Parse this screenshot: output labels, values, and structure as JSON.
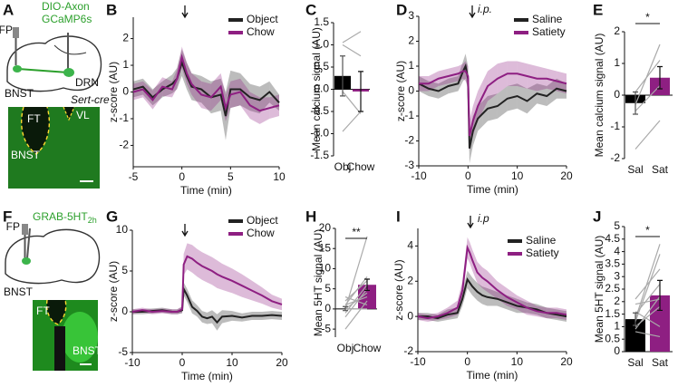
{
  "diagrams": [
    {
      "panel": "A",
      "labels": [
        "FP",
        "DIO-Axon",
        "GCaMP6s",
        "DRN",
        "BNST",
        "Sert-cre"
      ],
      "image_labels": [
        "FT",
        "VL",
        "BNST"
      ]
    },
    {
      "panel": "F",
      "label_main": "GRAB-5HT",
      "label_sub": "2h",
      "labels": [
        "FP",
        "BNST"
      ],
      "image_labels": [
        "FT",
        "BNST"
      ]
    }
  ],
  "chart_data": [
    {
      "type": "line",
      "panel": "B",
      "xlabel": "Time (min)",
      "ylabel": "z-score (AU)",
      "x": [
        -5,
        -4,
        -3,
        -2,
        -1,
        -0.5,
        0,
        0.5,
        1,
        2,
        3,
        4,
        4.5,
        5,
        6,
        7,
        8,
        9,
        10
      ],
      "series": [
        {
          "name": "Object",
          "color": "#222222",
          "values": [
            0.1,
            0.2,
            -0.2,
            0.1,
            0.3,
            0.5,
            1.1,
            0.6,
            0.2,
            0.1,
            -0.2,
            -0.1,
            -0.9,
            0.1,
            0.1,
            -0.2,
            -0.3,
            0,
            -0.4
          ],
          "errors": [
            0.3,
            0.3,
            0.3,
            0.3,
            0.35,
            0.4,
            0.5,
            0.5,
            0.5,
            0.5,
            0.6,
            0.6,
            0.9,
            0.7,
            0.6,
            0.5,
            0.5,
            0.4,
            0.3
          ]
        },
        {
          "name": "Chow",
          "color": "#8e1f82",
          "values": [
            0,
            0.1,
            -0.3,
            0.2,
            0.1,
            0.5,
            1.3,
            0.7,
            0.3,
            -0.1,
            -0.2,
            0.2,
            -0.6,
            -0.1,
            0,
            -0.5,
            -0.7,
            -0.6,
            -0.5
          ],
          "errors": [
            0.3,
            0.3,
            0.35,
            0.35,
            0.3,
            0.35,
            0.4,
            0.4,
            0.4,
            0.5,
            0.5,
            0.5,
            0.5,
            0.5,
            0.5,
            0.5,
            0.5,
            0.4,
            0.4
          ]
        }
      ],
      "xlim": [
        -5,
        10
      ],
      "xticks": [
        -5,
        0,
        5,
        10
      ],
      "ylim": [
        -2.8,
        2.8
      ],
      "yticks": [
        -2,
        -1,
        0,
        1,
        2
      ]
    },
    {
      "type": "bar",
      "panel": "C",
      "ylabel": "Mean calcium signal (AU)",
      "categories": [
        "Obj",
        "Chow"
      ],
      "colors": [
        "#000000",
        "#8e1f82"
      ],
      "values": [
        0.3,
        -0.05
      ],
      "errors": [
        0.45,
        0.45
      ],
      "pairs": [
        [
          1.05,
          1.3
        ],
        [
          1.0,
          0.75
        ],
        [
          -0.05,
          -0.55
        ],
        [
          -0.95,
          -0.5
        ]
      ],
      "ylim": [
        -1.5,
        1.5
      ],
      "yticks": [
        -1.5,
        {
          "value": -1,
          "label": "-1.0"
        },
        -0.5,
        {
          "value": 0,
          "label": "0.0"
        },
        0.5,
        {
          "value": 1,
          "label": "1.0"
        },
        1.5
      ]
    },
    {
      "type": "line",
      "panel": "D",
      "xlabel": "Time (min)",
      "ylabel": "z-score (AU)",
      "annotation": "i.p.",
      "x": [
        -10,
        -8,
        -6,
        -4,
        -2,
        -1,
        -0.5,
        0,
        0.3,
        1,
        2,
        3,
        4,
        6,
        8,
        10,
        12,
        14,
        16,
        18,
        20
      ],
      "series": [
        {
          "name": "Saline",
          "color": "#222222",
          "values": [
            0.3,
            0.1,
            0,
            0.2,
            0.3,
            0.8,
            1.0,
            0.5,
            -2.3,
            -1.6,
            -1.1,
            -0.9,
            -0.7,
            -0.6,
            -0.3,
            -0.2,
            -0.4,
            -0.1,
            -0.2,
            0.1,
            0
          ],
          "errors": [
            0.3,
            0.3,
            0.3,
            0.3,
            0.3,
            0.4,
            0.5,
            0.5,
            0.6,
            0.6,
            0.5,
            0.5,
            0.5,
            0.5,
            0.5,
            0.5,
            0.5,
            0.4,
            0.4,
            0.4,
            0.3
          ]
        },
        {
          "name": "Satiety",
          "color": "#8e1f82",
          "values": [
            0.3,
            0.3,
            0.5,
            0.6,
            0.7,
            0.8,
            0.8,
            0.6,
            -1.8,
            -1.2,
            -0.6,
            -0.2,
            0.2,
            0.5,
            0.7,
            0.7,
            0.6,
            0.5,
            0.5,
            0.4,
            0.3
          ],
          "errors": [
            0.3,
            0.3,
            0.3,
            0.3,
            0.3,
            0.3,
            0.4,
            0.4,
            0.6,
            0.6,
            0.6,
            0.6,
            0.6,
            0.6,
            0.5,
            0.5,
            0.5,
            0.5,
            0.4,
            0.4,
            0.4
          ]
        }
      ],
      "xlim": [
        -10,
        20
      ],
      "xticks": [
        -10,
        0,
        10,
        20
      ],
      "ylim": [
        -3,
        3
      ],
      "yticks": [
        -3,
        -2,
        -1,
        0,
        1,
        2,
        3
      ]
    },
    {
      "type": "bar",
      "panel": "E",
      "ylabel": "Mean calcium signal (AU)",
      "categories": [
        "Sal",
        "Sat"
      ],
      "colors": [
        "#000000",
        "#8e1f82"
      ],
      "values": [
        -0.25,
        0.55
      ],
      "errors": [
        0.35,
        0.35
      ],
      "pairs": [
        [
          -0.3,
          1.6
        ],
        [
          0.1,
          1.1
        ],
        [
          -0.5,
          0.3
        ],
        [
          -1.7,
          -0.8
        ]
      ],
      "significance": "*",
      "ylim": [
        -2,
        2
      ],
      "yticks": [
        -2,
        -1,
        0,
        1,
        2
      ]
    },
    {
      "type": "line",
      "panel": "G",
      "xlabel": "Time (min)",
      "ylabel": "z-score (AU)",
      "x": [
        -10,
        -8,
        -6,
        -4,
        -2,
        -1,
        0,
        0.3,
        1,
        2,
        3,
        4,
        5,
        6,
        7,
        8,
        10,
        12,
        14,
        16,
        18,
        20
      ],
      "series": [
        {
          "name": "Object",
          "color": "#222222",
          "values": [
            0,
            0,
            0.1,
            0.2,
            0,
            0,
            0.2,
            2.8,
            2.0,
            0.6,
            0.1,
            -0.6,
            -0.8,
            -0.6,
            -1.3,
            -0.6,
            -0.5,
            -0.7,
            -0.5,
            -0.5,
            -0.4,
            -0.5
          ],
          "errors": [
            0.3,
            0.3,
            0.3,
            0.3,
            0.3,
            0.3,
            0.4,
            0.8,
            0.8,
            0.8,
            0.7,
            0.7,
            0.7,
            0.8,
            1.0,
            0.8,
            0.6,
            0.5,
            0.5,
            0.5,
            0.5,
            0.5
          ]
        },
        {
          "name": "Chow",
          "color": "#8e1f82",
          "values": [
            0,
            0.2,
            0,
            0.1,
            0,
            0,
            0.3,
            5.8,
            6.8,
            6.5,
            6.0,
            5.6,
            5.3,
            5.0,
            4.6,
            4.3,
            3.8,
            3.2,
            2.6,
            2.0,
            1.3,
            0.9
          ],
          "errors": [
            0.3,
            0.3,
            0.3,
            0.3,
            0.3,
            0.3,
            0.4,
            1.3,
            1.6,
            1.7,
            1.7,
            1.7,
            1.7,
            1.7,
            1.7,
            1.6,
            1.5,
            1.4,
            1.2,
            1.0,
            0.8,
            0.7
          ]
        }
      ],
      "xlim": [
        -10,
        20
      ],
      "xticks": [
        -10,
        0,
        10,
        20
      ],
      "ylim": [
        -5,
        10
      ],
      "yticks": [
        -5,
        0,
        5,
        10
      ]
    },
    {
      "type": "bar",
      "panel": "H",
      "ylabel": "Mean 5HT signal (AU)",
      "categories": [
        "Obj",
        "Chow"
      ],
      "colors": [
        "#000000",
        "#8e1f82"
      ],
      "values": [
        0.1,
        6.0
      ],
      "errors": [
        0.5,
        1.4
      ],
      "pairs": [
        [
          0,
          18
        ],
        [
          1,
          8
        ],
        [
          2,
          7
        ],
        [
          -1,
          6
        ],
        [
          0,
          4
        ],
        [
          -2,
          5
        ],
        [
          1,
          3
        ],
        [
          -5,
          2
        ],
        [
          3,
          1
        ],
        [
          0,
          0
        ]
      ],
      "significance": "**",
      "ylim": [
        -7,
        20
      ],
      "yticks": [
        -5,
        0,
        5,
        10,
        15,
        20
      ]
    },
    {
      "type": "line",
      "panel": "I",
      "xlabel": "Time (min)",
      "ylabel": "z-score (AU)",
      "annotation": "i.p",
      "x": [
        -10,
        -8,
        -6,
        -4,
        -2,
        -1,
        0,
        0.5,
        1,
        2,
        3,
        4,
        6,
        8,
        10,
        12,
        14,
        16,
        18,
        20
      ],
      "series": [
        {
          "name": "Saline",
          "color": "#222222",
          "values": [
            0,
            0,
            -0.1,
            0.1,
            0.2,
            1.0,
            2.1,
            1.9,
            1.7,
            1.4,
            1.2,
            1.1,
            1.0,
            0.8,
            0.6,
            0.5,
            0.4,
            0.2,
            0.1,
            0
          ],
          "errors": [
            0.2,
            0.2,
            0.2,
            0.3,
            0.3,
            0.4,
            0.5,
            0.5,
            0.5,
            0.5,
            0.5,
            0.5,
            0.4,
            0.4,
            0.4,
            0.3,
            0.3,
            0.3,
            0.3,
            0.3
          ]
        },
        {
          "name": "Satiety",
          "color": "#8e1f82",
          "values": [
            0,
            -0.1,
            0,
            0.2,
            0.5,
            1.5,
            3.9,
            3.6,
            3.2,
            2.5,
            2.2,
            2.0,
            1.5,
            1.1,
            0.8,
            0.5,
            0.3,
            0.2,
            0.2,
            0.1
          ],
          "errors": [
            0.2,
            0.2,
            0.2,
            0.3,
            0.4,
            0.5,
            0.6,
            0.6,
            0.6,
            0.6,
            0.6,
            0.6,
            0.5,
            0.5,
            0.4,
            0.4,
            0.3,
            0.3,
            0.3,
            0.3
          ]
        }
      ],
      "xlim": [
        -10,
        20
      ],
      "xticks": [
        -10,
        0,
        10,
        20
      ],
      "ylim": [
        -2,
        5
      ],
      "yticks": [
        -2,
        0,
        2,
        4
      ]
    },
    {
      "type": "bar",
      "panel": "J",
      "ylabel": "Mean 5HT signal (AU)",
      "categories": [
        "Sal",
        "Sat"
      ],
      "colors": [
        "#000000",
        "#8e1f82"
      ],
      "values": [
        1.3,
        2.25
      ],
      "errors": [
        0.25,
        0.6
      ],
      "pairs": [
        [
          1.3,
          4.3
        ],
        [
          1.2,
          3.9
        ],
        [
          2.1,
          3.3
        ],
        [
          1.5,
          2.7
        ],
        [
          1.9,
          2.1
        ],
        [
          0.9,
          2.2
        ],
        [
          1.0,
          1.8
        ],
        [
          1.6,
          1.0
        ],
        [
          0.8,
          0.6
        ]
      ],
      "significance": "*",
      "ylim": [
        0,
        5
      ],
      "yticks": [
        0,
        0.5,
        1,
        1.5,
        2,
        2.5,
        3,
        3.5,
        4,
        4.5,
        5
      ]
    }
  ]
}
